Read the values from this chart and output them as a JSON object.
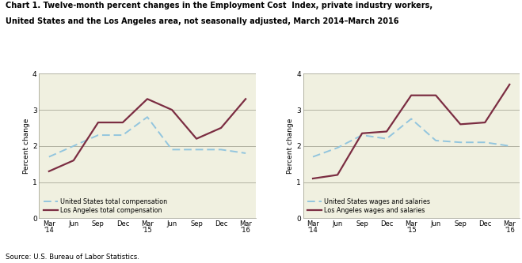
{
  "title_line1": "Chart 1. Twelve-month percent changes in the Employment Cost  Index, private industry workers,",
  "title_line2": "United States and the Los Angeles area, not seasonally adjusted, March 2014–March 2016",
  "source": "Source: U.S. Bureau of Labor Statistics.",
  "ylabel": "Percent change",
  "x_labels": [
    "Mar\n'14",
    "Jun",
    "Sep",
    "Dec",
    "Mar\n'15",
    "Jun",
    "Sep",
    "Dec",
    "Mar\n'16"
  ],
  "ylim": [
    0.0,
    4.0
  ],
  "yticks": [
    0.0,
    1.0,
    2.0,
    3.0,
    4.0
  ],
  "chart1": {
    "us_vals": [
      1.7,
      2.0,
      2.3,
      2.3,
      2.8,
      1.9,
      1.9,
      1.9,
      1.8
    ],
    "la_vals": [
      1.3,
      1.6,
      2.65,
      2.65,
      3.3,
      3.0,
      2.2,
      2.5,
      3.3
    ],
    "legend1": "United States total compensation",
    "legend2": "Los Angeles total compensation"
  },
  "chart2": {
    "us_vals": [
      1.7,
      1.95,
      2.3,
      2.2,
      2.75,
      2.15,
      2.1,
      2.1,
      2.0
    ],
    "la_vals": [
      1.1,
      1.2,
      2.35,
      2.4,
      3.4,
      3.4,
      2.6,
      2.65,
      3.7
    ],
    "legend1": "United States wages and salaries",
    "legend2": "Los Angeles wages and salaries"
  },
  "us_color": "#92C5DE",
  "la_color": "#7B2D42",
  "fig_bg": "#FFFFFF",
  "plot_bg": "#F0F0E0"
}
